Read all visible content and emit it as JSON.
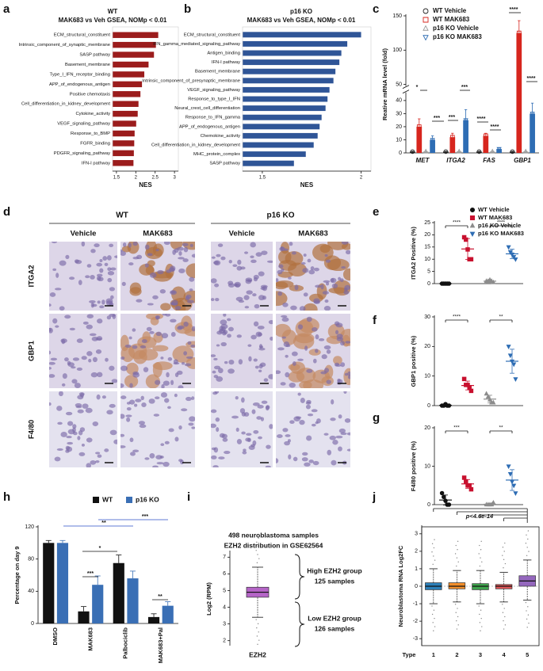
{
  "chart_data": [
    {
      "type": "hbar",
      "panel": "a",
      "title": "WT",
      "subtitle": "MAK683 vs Veh GSEA, NOMp < 0.01",
      "xlabel": "NES",
      "color": "#9b1c1c",
      "categories": [
        "ECM_structural_constituent",
        "Intrinsic_component_of_synaptic_membrane",
        "SASP pathway",
        "Basement_membrane",
        "Type_I_IFN_receptor_binding",
        "APP_of_endogenous_antigen",
        "Positive chemotaxis",
        "Cell_differentiation_in_kidney_development",
        "Cytokine_activity",
        "VEGF_signaling_pathway",
        "Response_to_BMP",
        "FGFR_binding",
        "PDGFR_signaling_pathway",
        "IFN-I pathway"
      ],
      "values": [
        2.58,
        2.52,
        2.47,
        2.33,
        2.22,
        2.16,
        2.12,
        2.07,
        2.05,
        2.01,
        1.97,
        1.96,
        1.95,
        1.94
      ],
      "xlim": [
        1.4,
        3.1
      ],
      "xticks": [
        1.5,
        2,
        2.5,
        3
      ]
    },
    {
      "type": "hbar",
      "panel": "b",
      "title": "p16 KO",
      "subtitle": "MAK683 vs Veh GSEA, NOMp < 0.01",
      "xlabel": "NES",
      "color": "#2f5597",
      "categories": [
        "ECM_structural_constituent",
        "IFN_gamma_mediated_signaling_pathway",
        "Antigen_binding",
        "IFN-I pathway",
        "Basement_membrane",
        "Intrinsic_component_of_presynaptic_membrane",
        "VEGF_signaling_pathway",
        "Response_to_type_I_IFN",
        "Neural_crest_cell_differentiation",
        "Response_to_IFN_gamma",
        "APP_of_endogenous_antigen",
        "Chemokine_activity",
        "Cell_differentiation_in_kidney_development",
        "MHC_protein_complex",
        "SASP pathway"
      ],
      "values": [
        2.0,
        1.93,
        1.9,
        1.89,
        1.87,
        1.86,
        1.84,
        1.83,
        1.82,
        1.8,
        1.79,
        1.78,
        1.76,
        1.72,
        1.66
      ],
      "xlim": [
        1.4,
        2.05
      ],
      "xticks": [
        1.5,
        2
      ]
    },
    {
      "type": "grouped_bar",
      "panel": "c",
      "ylabel": "Reative mRNA level (fold)",
      "categories": [
        "MET",
        "ITGA2",
        "FAS",
        "GBP1"
      ],
      "series": [
        {
          "name": "WT Vehicle",
          "color": "#222222",
          "marker": "circle",
          "values": [
            1,
            1,
            1,
            1
          ],
          "errors": [
            0.3,
            0.3,
            0.3,
            0.3
          ]
        },
        {
          "name": "WT MAK683",
          "color": "#d7261e",
          "marker": "square",
          "values": [
            20,
            12,
            13,
            125
          ],
          "errors": [
            6,
            3,
            2,
            18
          ]
        },
        {
          "name": "p16 KO Vehicle",
          "color": "#9a9a9a",
          "marker": "triangle",
          "values": [
            1,
            1,
            1,
            1
          ],
          "errors": [
            0.3,
            0.3,
            0.3,
            0.3
          ]
        },
        {
          "name": "p16 KO MAK683",
          "color": "#2e6db4",
          "marker": "triangle-down",
          "values": [
            10,
            25,
            3,
            30
          ],
          "errors": [
            3,
            8,
            1,
            8
          ]
        }
      ],
      "ylim": [
        0,
        150
      ],
      "yticks": [
        0,
        10,
        20,
        30,
        40,
        50,
        100,
        150
      ],
      "ybreak": [
        45,
        50
      ],
      "annotations": [
        "*",
        "***",
        "***",
        "***",
        "****",
        "****",
        "****",
        "****"
      ]
    },
    {
      "type": "dot",
      "panel": "e",
      "ylabel": "ITGA2 Positive (%)",
      "series": [
        {
          "name": "WT Vehicle",
          "color": "#111111",
          "marker": "circle",
          "values": [
            0,
            0,
            0,
            0,
            0
          ]
        },
        {
          "name": "WT MAK683",
          "color": "#c8102e",
          "marker": "square",
          "values": [
            19,
            18,
            14,
            10,
            10
          ]
        },
        {
          "name": "p16 KO Vehicle",
          "color": "#8c8c8c",
          "marker": "triangle",
          "values": [
            1,
            1,
            1.5,
            1,
            0.5
          ]
        },
        {
          "name": "p16 KO MAK683",
          "color": "#2e6db4",
          "marker": "triangle-down",
          "values": [
            15,
            13,
            12,
            11,
            10
          ]
        }
      ],
      "ylim": [
        0,
        25
      ],
      "yticks": [
        0,
        5,
        10,
        15,
        20,
        25
      ],
      "annotations": [
        "****",
        "****"
      ]
    },
    {
      "type": "dot",
      "panel": "f",
      "ylabel": "GBP1 positive  (%)",
      "series": [
        {
          "color": "#111111",
          "marker": "circle",
          "values": [
            0,
            0,
            0.5,
            0,
            0
          ]
        },
        {
          "color": "#c8102e",
          "marker": "square",
          "values": [
            9,
            7,
            7,
            6,
            5
          ]
        },
        {
          "color": "#8c8c8c",
          "marker": "triangle",
          "values": [
            4,
            3,
            2,
            1,
            1
          ]
        },
        {
          "color": "#2e6db4",
          "marker": "triangle-down",
          "values": [
            20,
            17,
            15,
            14,
            9
          ]
        }
      ],
      "ylim": [
        0,
        30
      ],
      "yticks": [
        0,
        10,
        20,
        30
      ],
      "annotations": [
        "****",
        "**"
      ]
    },
    {
      "type": "dot",
      "panel": "g",
      "ylabel": "F4/80 positive  (%)",
      "series": [
        {
          "color": "#111111",
          "marker": "circle",
          "values": [
            3,
            2,
            1,
            0,
            0
          ]
        },
        {
          "color": "#c8102e",
          "marker": "square",
          "values": [
            7,
            6,
            5,
            5,
            4
          ]
        },
        {
          "color": "#8c8c8c",
          "marker": "triangle",
          "values": [
            0,
            0,
            0,
            0,
            0.5
          ]
        },
        {
          "color": "#2e6db4",
          "marker": "triangle-down",
          "values": [
            10,
            8,
            6,
            5,
            3
          ]
        }
      ],
      "ylim": [
        0,
        20
      ],
      "yticks": [
        0,
        10,
        20
      ],
      "annotations": [
        "***",
        "**"
      ]
    },
    {
      "type": "grouped_bar",
      "panel": "h",
      "ylabel": "Percentage on day 9",
      "categories": [
        "DMSO",
        "MAK683",
        "Palbociclib",
        "MAK683+Pal"
      ],
      "series": [
        {
          "name": "WT",
          "color": "#111111",
          "values": [
            100,
            15,
            75,
            8
          ],
          "errors": [
            3,
            6,
            10,
            4
          ]
        },
        {
          "name": "p16 KO",
          "color": "#3a6fb5",
          "values": [
            100,
            48,
            56,
            22
          ],
          "errors": [
            3,
            11,
            9,
            5
          ]
        }
      ],
      "ylim": [
        0,
        120
      ],
      "yticks": [
        0,
        40,
        80,
        120
      ],
      "annotations": [
        "***",
        "*",
        "**",
        "***",
        "**"
      ]
    },
    {
      "type": "box",
      "panel": "i",
      "title": "498 neuroblastoma samples",
      "subtitle": "EZH2 distribution in GSE62564",
      "ylabel": "Log2 (RPM)",
      "categories": [
        "EZH2"
      ],
      "colors": [
        "#b565c7"
      ],
      "boxes": [
        {
          "whislo": 3.4,
          "q1": 4.6,
          "med": 4.9,
          "q3": 5.2,
          "whishi": 6.4
        }
      ],
      "ylim": [
        1.7,
        7.3
      ],
      "yticks": [
        2,
        3,
        4,
        5,
        6,
        7
      ],
      "annotations": [
        "High EZH2 group",
        "125 samples",
        "Low EZH2 group",
        "126 samples"
      ]
    },
    {
      "type": "box",
      "panel": "j",
      "ylabel": "Neuroblastoma RNA Log2FC",
      "xlabel": "Type",
      "categories": [
        "1",
        "2",
        "3",
        "4",
        "5"
      ],
      "colors": [
        "#2c7fb8",
        "#f28e2b",
        "#3fa34d",
        "#e15759",
        "#9467bd"
      ],
      "boxes": [
        {
          "whislo": -1.0,
          "q1": -0.2,
          "med": 0.0,
          "q3": 0.2,
          "whishi": 1.0
        },
        {
          "whislo": -0.9,
          "q1": -0.15,
          "med": 0.0,
          "q3": 0.2,
          "whishi": 0.9
        },
        {
          "whislo": -1.0,
          "q1": -0.2,
          "med": 0.0,
          "q3": 0.15,
          "whishi": 0.9
        },
        {
          "whislo": -0.9,
          "q1": -0.15,
          "med": 0.0,
          "q3": 0.1,
          "whishi": 0.8
        },
        {
          "whislo": -0.8,
          "q1": 0.0,
          "med": 0.3,
          "q3": 0.6,
          "whishi": 1.5
        }
      ],
      "ylim": [
        -3.4,
        3.4
      ],
      "yticks": [
        -3,
        -2,
        -1,
        0,
        1,
        2,
        3
      ],
      "annotations": [
        "p<4.6e-14"
      ]
    }
  ],
  "micrographs": {
    "panel": "d",
    "groups": [
      "WT",
      "p16 KO"
    ],
    "columns": [
      "Vehicle",
      "MAK683",
      "Vehicle",
      "MAK683"
    ],
    "rows": [
      "ITGA2",
      "GBP1",
      "F4/80"
    ]
  }
}
